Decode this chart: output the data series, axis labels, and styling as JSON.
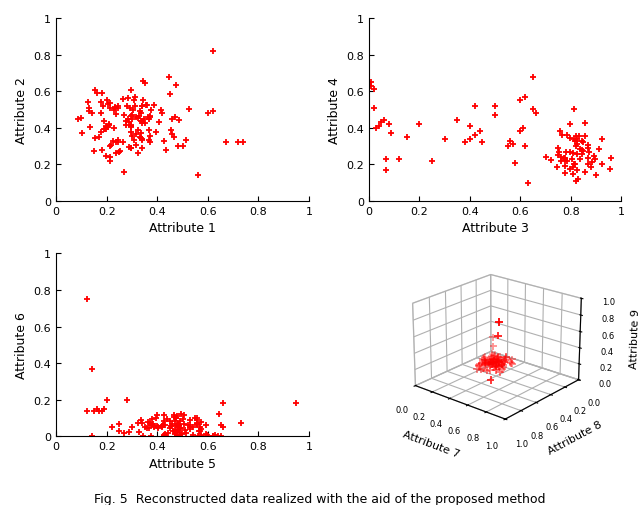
{
  "title": "Fig. 5  Reconstructed data realized with the aid of the proposed method",
  "red_color": "#FF0000",
  "marker": "+",
  "markersize": 5,
  "markeredgewidth": 1.3,
  "bg_color": "#ffffff",
  "plot1": {
    "xlabel": "Attribute 1",
    "ylabel": "Attribute 2",
    "xlim": [
      0,
      1
    ],
    "ylim": [
      0,
      1
    ],
    "xticks": [
      0,
      0.2,
      0.4,
      0.6,
      0.8,
      1
    ],
    "yticks": [
      0,
      0.2,
      0.4,
      0.6,
      0.8,
      1
    ]
  },
  "plot2": {
    "xlabel": "Attribute 3",
    "ylabel": "Attribute 4",
    "xlim": [
      0,
      1
    ],
    "ylim": [
      0,
      1
    ],
    "xticks": [
      0,
      0.2,
      0.4,
      0.6,
      0.8,
      1
    ],
    "yticks": [
      0,
      0.2,
      0.4,
      0.6,
      0.8,
      1
    ]
  },
  "plot3": {
    "xlabel": "Attribute 5",
    "ylabel": "Attribute 6",
    "xlim": [
      0,
      1
    ],
    "ylim": [
      0,
      1
    ],
    "xticks": [
      0,
      0.2,
      0.4,
      0.6,
      0.8,
      1
    ],
    "yticks": [
      0,
      0.2,
      0.4,
      0.6,
      0.8,
      1
    ]
  },
  "plot4": {
    "xlabel": "Attribute 7",
    "ylabel": "Attribute 8",
    "zlabel": "Attribute 9",
    "xlim": [
      0,
      1
    ],
    "ylim": [
      0,
      1
    ],
    "zlim": [
      0,
      1
    ],
    "elev": 22,
    "azim": -50
  },
  "tick_fontsize": 8,
  "label_fontsize": 9,
  "label_fontsize_3d": 8
}
